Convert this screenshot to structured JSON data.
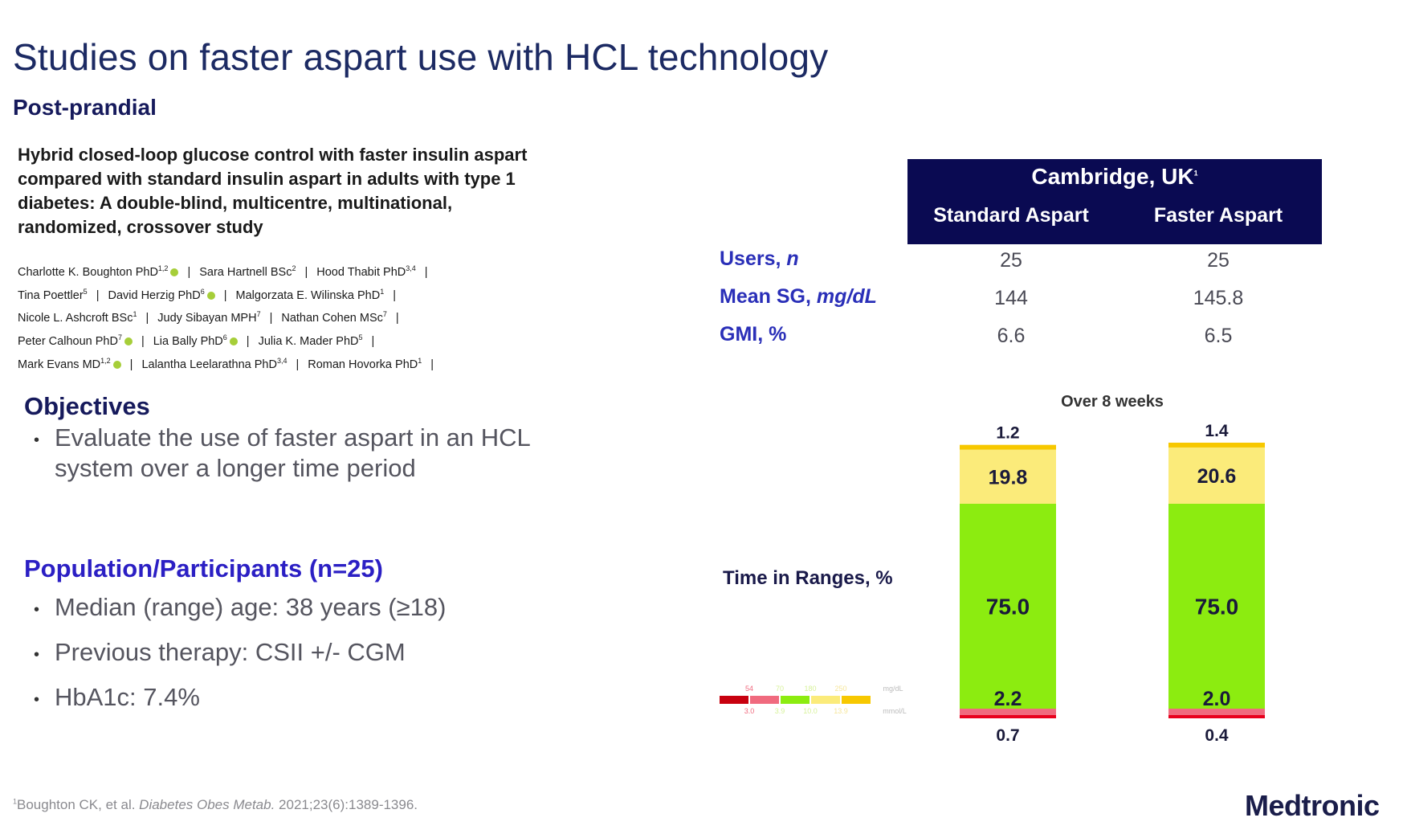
{
  "title": "Studies on faster aspart use with HCL technology",
  "subtitle": "Post-prandial",
  "paper_title": "Hybrid closed-loop glucose control with faster insulin aspart compared with standard insulin aspart in adults with type 1 diabetes: A double-blind, multicentre, multinational, randomized, crossover study",
  "authors": [
    {
      "name": "Charlotte K. Boughton PhD",
      "sup": "1,2",
      "orcid": true
    },
    {
      "name": "Sara Hartnell BSc",
      "sup": "2",
      "orcid": false
    },
    {
      "name": "Hood Thabit PhD",
      "sup": "3,4",
      "orcid": false
    },
    {
      "name": "Tina Poettler",
      "sup": "5",
      "orcid": false
    },
    {
      "name": "David Herzig PhD",
      "sup": "6",
      "orcid": true
    },
    {
      "name": "Malgorzata E. Wilinska PhD",
      "sup": "1",
      "orcid": false
    },
    {
      "name": "Nicole L. Ashcroft BSc",
      "sup": "1",
      "orcid": false
    },
    {
      "name": "Judy Sibayan MPH",
      "sup": "7",
      "orcid": false
    },
    {
      "name": "Nathan Cohen MSc",
      "sup": "7",
      "orcid": false
    },
    {
      "name": "Peter Calhoun PhD",
      "sup": "7",
      "orcid": true
    },
    {
      "name": "Lia Bally PhD",
      "sup": "6",
      "orcid": true
    },
    {
      "name": "Julia K. Mader PhD",
      "sup": "5",
      "orcid": false
    },
    {
      "name": "Mark Evans MD",
      "sup": "1,2",
      "orcid": true
    },
    {
      "name": "Lalantha Leelarathna PhD",
      "sup": "3,4",
      "orcid": false
    },
    {
      "name": "Roman Hovorka PhD",
      "sup": "1",
      "orcid": false
    }
  ],
  "objectives": {
    "heading": "Objectives",
    "items": [
      "Evaluate the use of faster aspart in an HCL system over a longer time period"
    ]
  },
  "population": {
    "heading": "Population/Participants (n=25)",
    "items": [
      "Median (range) age: 38 years (≥18)",
      "Previous therapy: CSII +/- CGM",
      "HbA1c: 7.4%"
    ]
  },
  "table": {
    "site": "Cambridge, UK",
    "site_sup": "1",
    "columns": [
      "Standard Aspart",
      "Faster Aspart"
    ],
    "rows": [
      {
        "label": "Users, ",
        "unit": "n",
        "values": [
          "25",
          "25"
        ]
      },
      {
        "label": "Mean SG, ",
        "unit": "mg/dL",
        "values": [
          "144",
          "145.8"
        ]
      },
      {
        "label": "GMI, %",
        "unit": "",
        "values": [
          "6.6",
          "6.5"
        ]
      }
    ]
  },
  "chart_data": {
    "type": "bar",
    "stacked": true,
    "title": "Over 8 weeks",
    "ylabel": "Time in Ranges, %",
    "categories": [
      "Standard Aspart",
      "Faster Aspart"
    ],
    "series": [
      {
        "range": "very-low",
        "color": "#e8001c",
        "values": [
          0.7,
          0.4
        ]
      },
      {
        "range": "low",
        "color": "#f06a7e",
        "values": [
          2.2,
          2.0
        ]
      },
      {
        "range": "in-range",
        "color": "#8cec10",
        "values": [
          75.0,
          75.0
        ]
      },
      {
        "range": "high",
        "color": "#fbeb7a",
        "values": [
          19.8,
          20.6
        ]
      },
      {
        "range": "very-high",
        "color": "#f7c800",
        "values": [
          1.2,
          1.4
        ]
      }
    ],
    "labels": [
      {
        "bottom": "0.7",
        "low": "2.2",
        "in": "75.0",
        "high": "19.8",
        "top": "1.2"
      },
      {
        "bottom": "0.4",
        "low": "2.0",
        "in": "75.0",
        "high": "20.6",
        "top": "1.4"
      }
    ]
  },
  "range_legend": {
    "top_values": [
      "54",
      "70",
      "180",
      "250"
    ],
    "bottom_values": [
      "3.0",
      "3.9",
      "10.0",
      "13.9"
    ],
    "unit_top": "mg/dL",
    "unit_bottom": "mmol/L",
    "colors": [
      "#c8000f",
      "#f06a7e",
      "#8cec10",
      "#fbeb7a",
      "#f7c800"
    ]
  },
  "footnote": {
    "sup": "1",
    "pre": "Boughton CK, et al. ",
    "journal": "Diabetes Obes Metab.",
    "post": " 2021;23(6):1389-1396."
  },
  "brand": "Medtronic"
}
